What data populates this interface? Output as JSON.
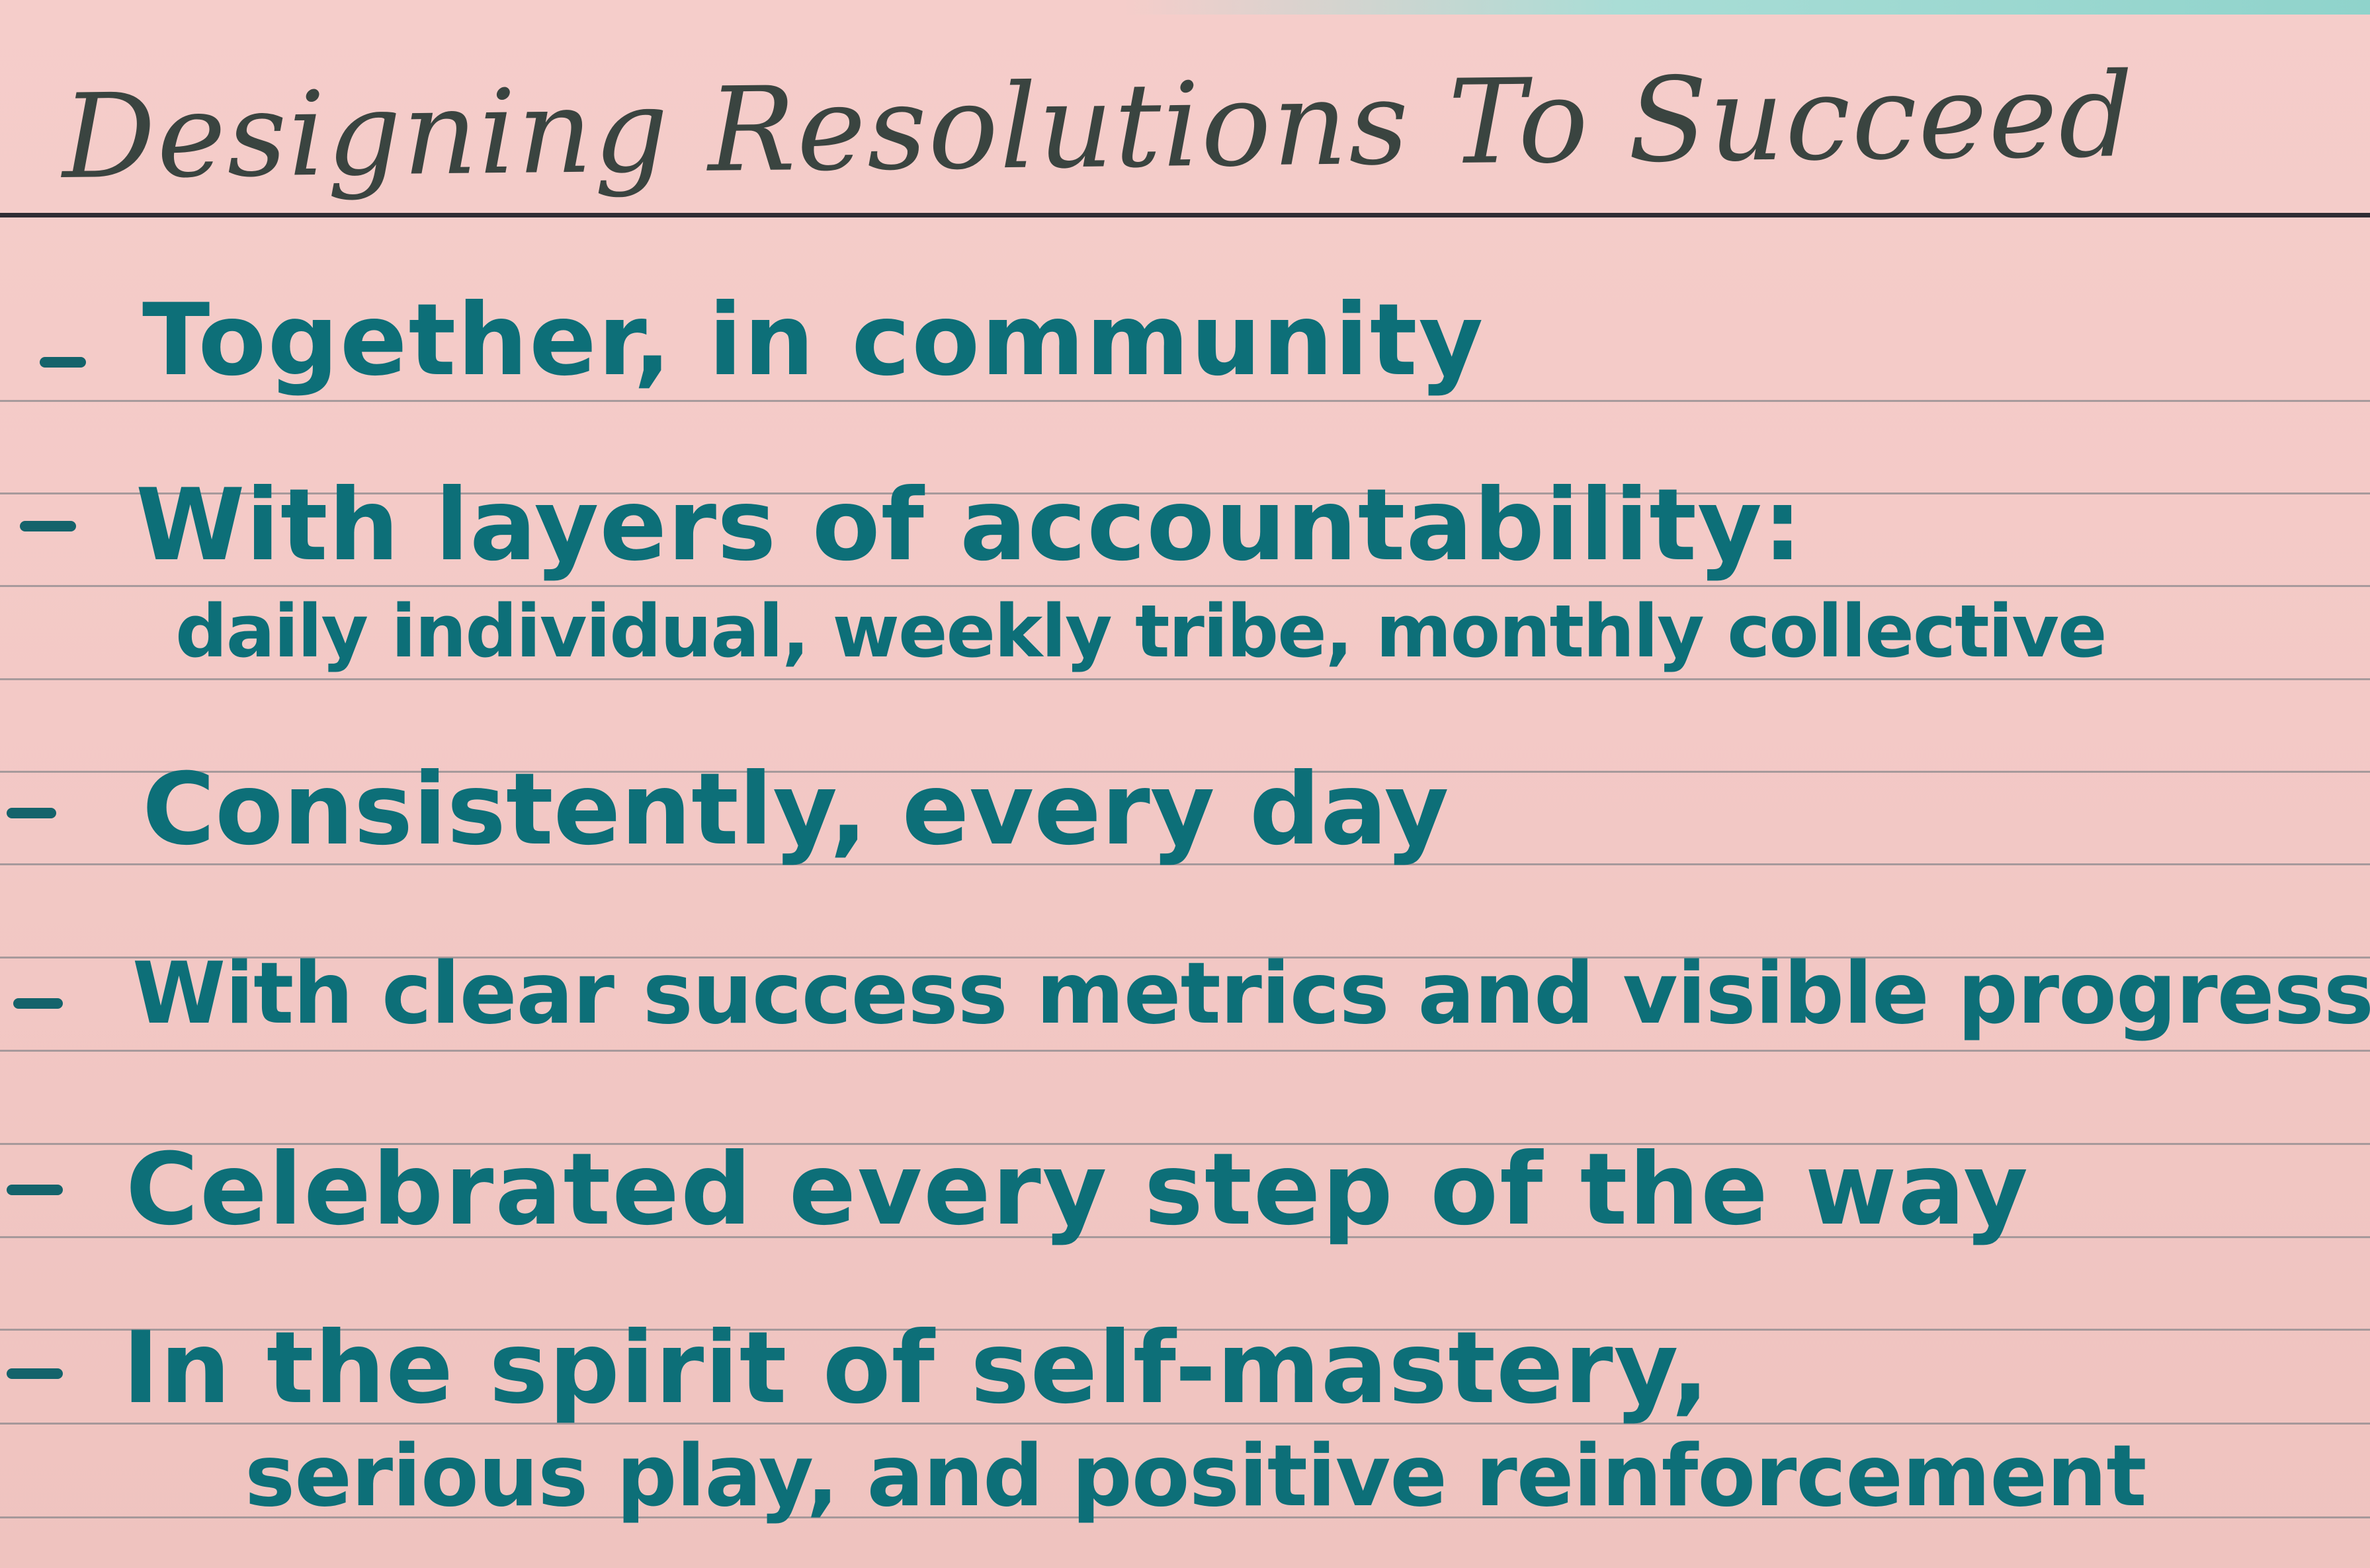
{
  "card": {
    "title": "Designing Resolutions To Succeed",
    "items": [
      {
        "text": "Together, in community"
      },
      {
        "text": "With layers of accountability:",
        "continuation": "daily individual, weekly tribe, monthly collective"
      },
      {
        "text": "Consistently, every day"
      },
      {
        "text": "With clear success metrics and visible progress"
      },
      {
        "text": "Celebrated every step of the way"
      },
      {
        "text": "In the spirit of self-mastery,",
        "continuation": "serious play, and positive reinforcement"
      }
    ]
  },
  "colors": {
    "card_paper": "#f4cbc8",
    "title_ink": "#3a4440",
    "body_ink": "#0d6f78",
    "header_rule": "#2f2c33",
    "ruled_lines": "#8d8a8e"
  }
}
